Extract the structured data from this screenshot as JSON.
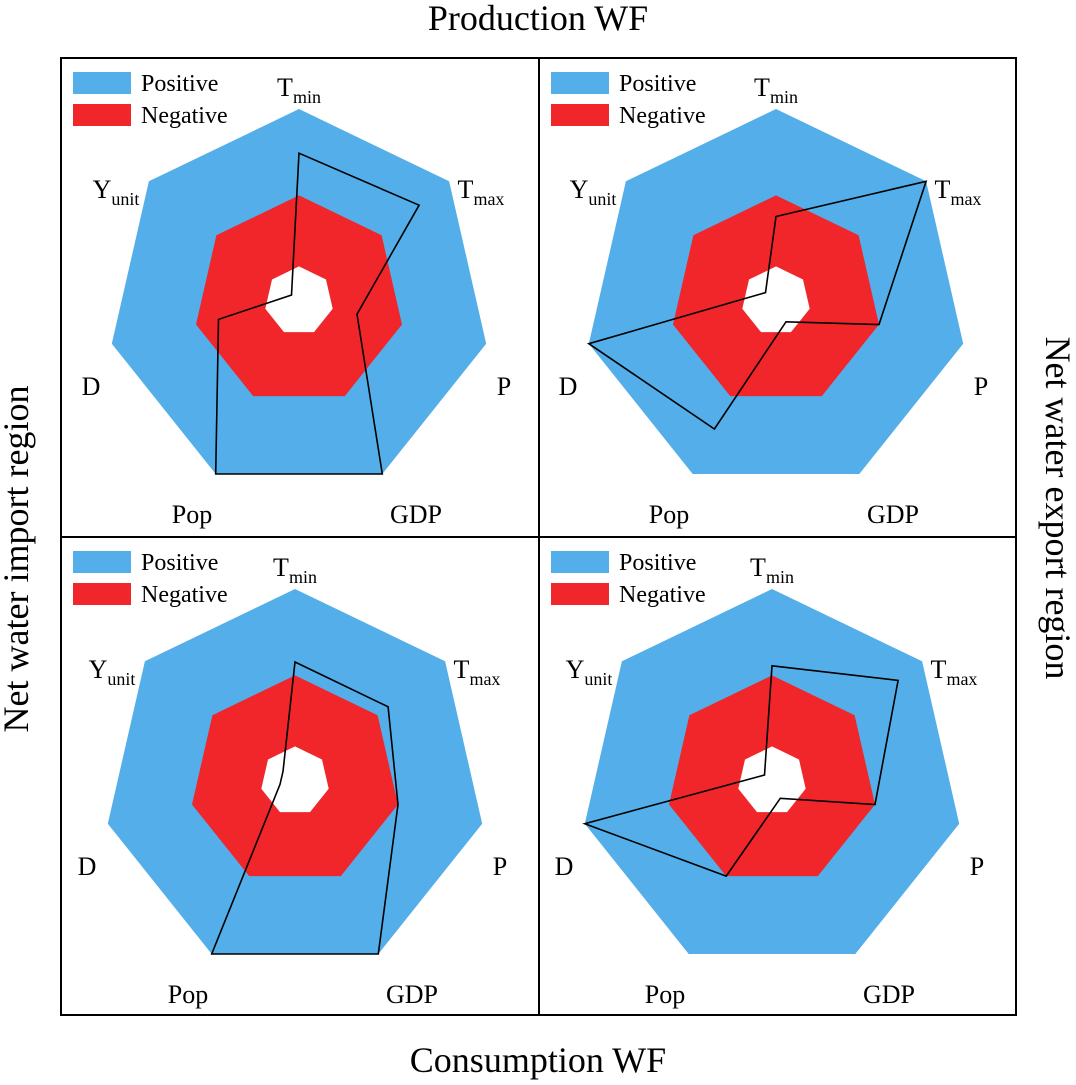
{
  "figure": {
    "title_top": "Production WF",
    "title_bottom": "Consumption WF",
    "side_left": "Net water import region",
    "side_right": "Net water export region"
  },
  "colors": {
    "positive": "#53aee9",
    "negative": "#f0262a",
    "center": "#ffffff",
    "line": "#000000"
  },
  "chart_data": [
    {
      "type": "radar",
      "row": "Production WF",
      "column": "Net water import region",
      "axes": [
        {
          "main": "T",
          "sub": "min"
        },
        {
          "main": "T",
          "sub": "max"
        },
        {
          "main": "P",
          "sub": ""
        },
        {
          "main": "GDP",
          "sub": ""
        },
        {
          "main": "Pop",
          "sub": ""
        },
        {
          "main": "D",
          "sub": ""
        },
        {
          "main": "Y",
          "sub": "unit"
        }
      ],
      "legend": [
        {
          "label": "Positive",
          "color": "#53aee9"
        },
        {
          "label": "Negative",
          "color": "#f0262a"
        }
      ],
      "bands": {
        "outer": 1.0,
        "middle": 0.55,
        "inner": 0.18
      },
      "values": [
        0.77,
        0.8,
        0.31,
        1.0,
        1.0,
        0.43,
        0.05
      ]
    },
    {
      "type": "radar",
      "row": "Production WF",
      "column": "Net water export region",
      "axes": [
        {
          "main": "T",
          "sub": "min"
        },
        {
          "main": "T",
          "sub": "max"
        },
        {
          "main": "P",
          "sub": ""
        },
        {
          "main": "GDP",
          "sub": ""
        },
        {
          "main": "Pop",
          "sub": ""
        },
        {
          "main": "D",
          "sub": ""
        },
        {
          "main": "Y",
          "sub": "unit"
        }
      ],
      "legend": [
        {
          "label": "Positive",
          "color": "#53aee9"
        },
        {
          "label": "Negative",
          "color": "#f0262a"
        }
      ],
      "bands": {
        "outer": 1.0,
        "middle": 0.55,
        "inner": 0.18
      },
      "values": [
        0.44,
        1.0,
        0.55,
        0.12,
        0.74,
        1.0,
        0.07
      ]
    },
    {
      "type": "radar",
      "row": "Consumption WF",
      "column": "Net water import region",
      "axes": [
        {
          "main": "T",
          "sub": "min"
        },
        {
          "main": "T",
          "sub": "max"
        },
        {
          "main": "P",
          "sub": ""
        },
        {
          "main": "GDP",
          "sub": ""
        },
        {
          "main": "Pop",
          "sub": ""
        },
        {
          "main": "D",
          "sub": ""
        },
        {
          "main": "Y",
          "sub": "unit"
        }
      ],
      "legend": [
        {
          "label": "Positive",
          "color": "#53aee9"
        },
        {
          "label": "Negative",
          "color": "#f0262a"
        }
      ],
      "bands": {
        "outer": 1.0,
        "middle": 0.55,
        "inner": 0.18
      },
      "values": [
        0.62,
        0.62,
        0.55,
        1.0,
        1.0,
        0.08,
        0.08
      ]
    },
    {
      "type": "radar",
      "row": "Consumption WF",
      "column": "Net water export region",
      "axes": [
        {
          "main": "T",
          "sub": "min"
        },
        {
          "main": "T",
          "sub": "max"
        },
        {
          "main": "P",
          "sub": ""
        },
        {
          "main": "GDP",
          "sub": ""
        },
        {
          "main": "Pop",
          "sub": ""
        },
        {
          "main": "D",
          "sub": ""
        },
        {
          "main": "Y",
          "sub": "unit"
        }
      ],
      "legend": [
        {
          "label": "Positive",
          "color": "#53aee9"
        },
        {
          "label": "Negative",
          "color": "#f0262a"
        }
      ],
      "bands": {
        "outer": 1.0,
        "middle": 0.55,
        "inner": 0.18
      },
      "values": [
        0.6,
        0.84,
        0.55,
        0.1,
        0.55,
        1.0,
        0.05
      ]
    }
  ]
}
